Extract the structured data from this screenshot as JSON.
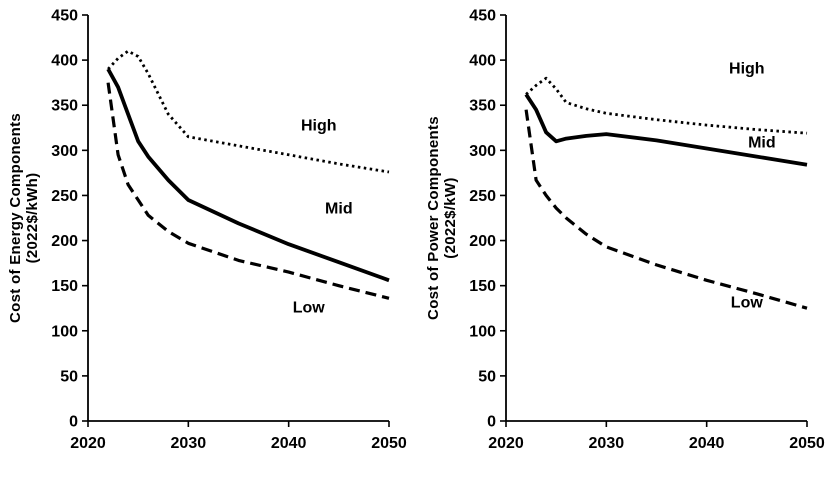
{
  "figure": {
    "background": "#ffffff",
    "line_color": "#000000"
  },
  "chart_data": [
    {
      "name": "cost-of-energy-components",
      "type": "line",
      "title": "",
      "xlabel": "",
      "ylabel_lines": [
        "Cost of Energy Components",
        "(2022$/kWh)"
      ],
      "xlim": [
        2020,
        2050
      ],
      "ylim": [
        0,
        450
      ],
      "xticks": [
        2020,
        2030,
        2040,
        2050
      ],
      "yticks": [
        0,
        50,
        100,
        150,
        200,
        250,
        300,
        350,
        400,
        450
      ],
      "grid": false,
      "legend": "inline-annotations",
      "x": [
        2022,
        2023,
        2024,
        2025,
        2026,
        2028,
        2030,
        2035,
        2040,
        2045,
        2050
      ],
      "series": [
        {
          "name": "High",
          "style": "dotted",
          "values": [
            390,
            402,
            410,
            404,
            385,
            340,
            315,
            305,
            295,
            285,
            276
          ]
        },
        {
          "name": "Mid",
          "style": "solid",
          "values": [
            390,
            370,
            340,
            310,
            293,
            267,
            245,
            219,
            196,
            176,
            156
          ]
        },
        {
          "name": "Low",
          "style": "dashed",
          "values": [
            375,
            295,
            262,
            245,
            228,
            210,
            197,
            178,
            165,
            150,
            136
          ]
        }
      ],
      "annotations": [
        {
          "text": "High",
          "x": 2043,
          "y": 322
        },
        {
          "text": "Mid",
          "x": 2045,
          "y": 230
        },
        {
          "text": "Low",
          "x": 2042,
          "y": 120
        }
      ]
    },
    {
      "name": "cost-of-power-components",
      "type": "line",
      "title": "",
      "xlabel": "",
      "ylabel_lines": [
        "Cost of Power Components",
        "(2022$/kW)"
      ],
      "xlim": [
        2020,
        2050
      ],
      "ylim": [
        0,
        450
      ],
      "xticks": [
        2020,
        2030,
        2040,
        2050
      ],
      "yticks": [
        0,
        50,
        100,
        150,
        200,
        250,
        300,
        350,
        400,
        450
      ],
      "grid": false,
      "legend": "inline-annotations",
      "x": [
        2022,
        2023,
        2024,
        2025,
        2026,
        2028,
        2030,
        2035,
        2040,
        2045,
        2050
      ],
      "series": [
        {
          "name": "High",
          "style": "dotted",
          "values": [
            362,
            372,
            380,
            368,
            353,
            346,
            341,
            334,
            328,
            323,
            319
          ]
        },
        {
          "name": "Mid",
          "style": "solid",
          "values": [
            362,
            345,
            320,
            310,
            313,
            316,
            318,
            311,
            302,
            293,
            284
          ]
        },
        {
          "name": "Low",
          "style": "dashed",
          "values": [
            345,
            267,
            250,
            236,
            225,
            207,
            193,
            173,
            156,
            141,
            125
          ]
        }
      ],
      "annotations": [
        {
          "text": "High",
          "x": 2044,
          "y": 385
        },
        {
          "text": "Mid",
          "x": 2045.5,
          "y": 303
        },
        {
          "text": "Low",
          "x": 2044,
          "y": 126
        }
      ]
    }
  ]
}
